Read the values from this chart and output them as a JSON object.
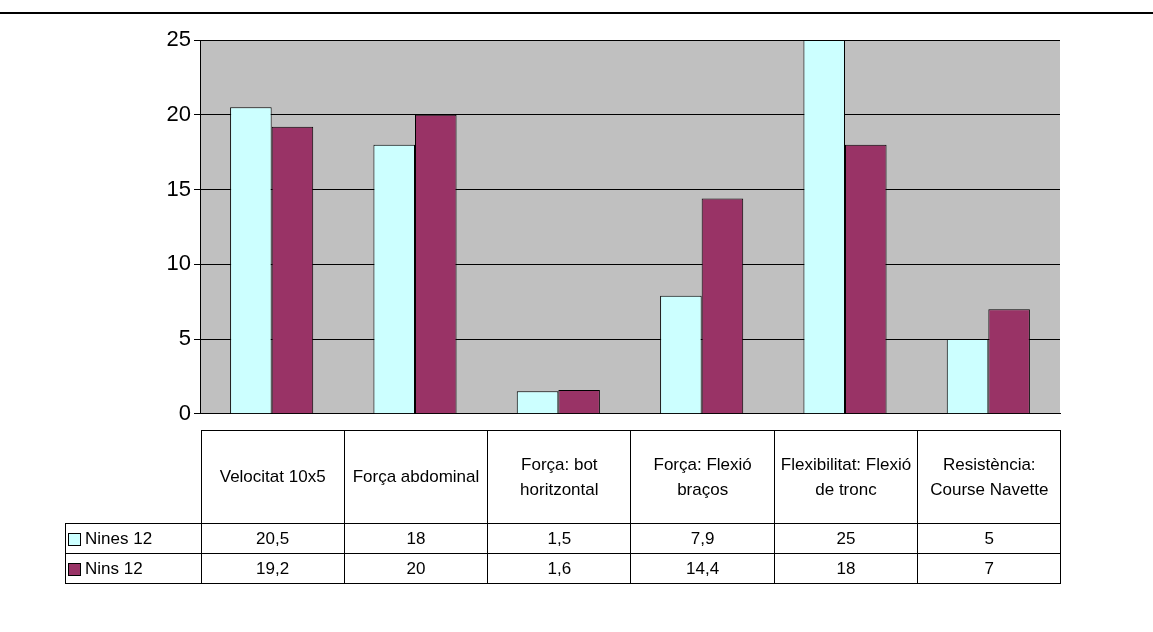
{
  "chart_data": {
    "type": "bar",
    "categories": [
      "Velocitat 10x5",
      "Força abdominal",
      "Força: bot horitzontal",
      "Força: Flexió braços",
      "Flexibilitat: Flexió de tronc",
      "Resistència: Course Navette"
    ],
    "series": [
      {
        "name": "Nines 12",
        "color": "#ccffff",
        "values": [
          20.5,
          18,
          1.5,
          7.9,
          25,
          5
        ],
        "value_labels": [
          "20,5",
          "18",
          "1,5",
          "7,9",
          "25",
          "5"
        ]
      },
      {
        "name": "Nins 12",
        "color": "#993366",
        "values": [
          19.2,
          20,
          1.6,
          14.4,
          18,
          7
        ],
        "value_labels": [
          "19,2",
          "20",
          "1,6",
          "14,4",
          "18",
          "7"
        ]
      }
    ],
    "ylim": [
      0,
      25
    ],
    "yticks": [
      0,
      5,
      10,
      15,
      20,
      25
    ],
    "grid": "y",
    "legend": "bottom"
  }
}
